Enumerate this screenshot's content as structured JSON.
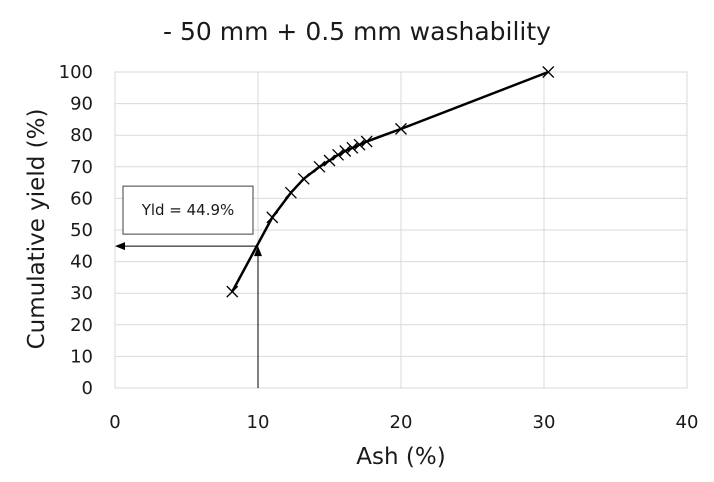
{
  "chart_data": {
    "type": "scatter",
    "title": "- 50 mm + 0.5 mm washability",
    "xlabel": "Ash (%)",
    "ylabel": "Cumulative yield (%)",
    "xlim": [
      0,
      40
    ],
    "ylim": [
      0,
      100
    ],
    "xticks": [
      0,
      10,
      20,
      30,
      40
    ],
    "yticks": [
      0,
      10,
      20,
      30,
      40,
      50,
      60,
      70,
      80,
      90,
      100
    ],
    "grid": true,
    "series": [
      {
        "marker": "x",
        "line": "solid",
        "color": "#000000",
        "points": [
          {
            "x": 8.2,
            "y": 30.5
          },
          {
            "x": 11.0,
            "y": 54.0
          },
          {
            "x": 12.3,
            "y": 61.8
          },
          {
            "x": 13.2,
            "y": 66.2
          },
          {
            "x": 14.3,
            "y": 70.0
          },
          {
            "x": 15.0,
            "y": 72.0
          },
          {
            "x": 15.6,
            "y": 73.8
          },
          {
            "x": 16.1,
            "y": 75.0
          },
          {
            "x": 16.6,
            "y": 76.0
          },
          {
            "x": 17.1,
            "y": 77.0
          },
          {
            "x": 17.6,
            "y": 78.0
          },
          {
            "x": 20.0,
            "y": 82.0
          },
          {
            "x": 30.3,
            "y": 100.0
          }
        ]
      }
    ],
    "annotation": {
      "text": "Yld = 44.9%",
      "point": {
        "x": 10,
        "y": 44.9
      },
      "color": "#000000"
    }
  }
}
